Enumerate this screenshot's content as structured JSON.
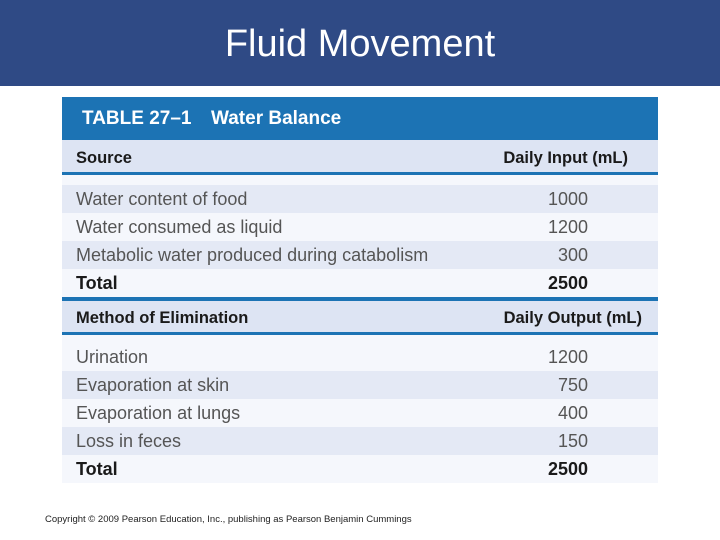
{
  "slide": {
    "title": "Fluid Movement",
    "copyright": "Copyright © 2009 Pearson Education, Inc., publishing as Pearson Benjamin Cummings"
  },
  "table": {
    "number": "TABLE 27–1",
    "name": "Water Balance",
    "input": {
      "col_source": "Source",
      "col_value": "Daily Input (mL)",
      "rows": [
        {
          "label": "Water content of food",
          "value": "1000"
        },
        {
          "label": "Water consumed as liquid",
          "value": "1200"
        },
        {
          "label": "Metabolic water produced during catabolism",
          "value": "300"
        }
      ],
      "total_label": "Total",
      "total_value": "2500"
    },
    "output": {
      "col_source": "Method of Elimination",
      "col_value": "Daily Output (mL)",
      "rows": [
        {
          "label": "Urination",
          "value": "1200"
        },
        {
          "label": "Evaporation at skin",
          "value": "750"
        },
        {
          "label": "Evaporation at lungs",
          "value": "400"
        },
        {
          "label": "Loss in feces",
          "value": "150"
        }
      ],
      "total_label": "Total",
      "total_value": "2500"
    }
  }
}
